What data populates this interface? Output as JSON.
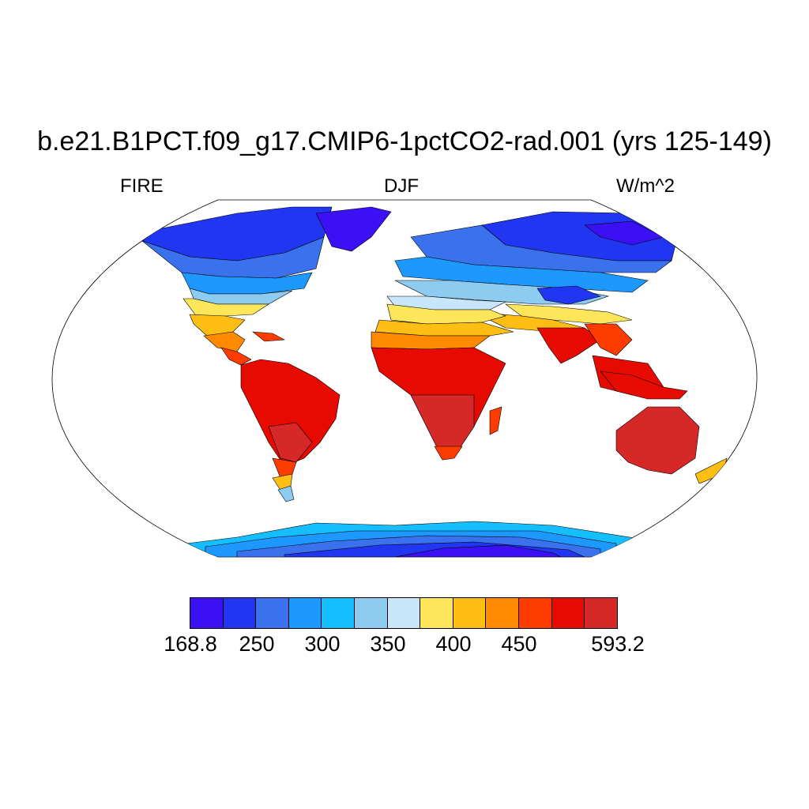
{
  "title": "b.e21.B1PCT.f09_g17.CMIP6-1pctCO2-rad.001 (yrs 125-149)",
  "left_label": "FIRE",
  "center_label": "DJF",
  "right_label": "W/m^2",
  "map": {
    "projection": "robinson",
    "variable": "FIRE",
    "season": "DJF",
    "units": "W/m^2"
  },
  "colorbar": {
    "colors": [
      "#3c10f5",
      "#2036f0",
      "#3a72ee",
      "#1c98ff",
      "#14beff",
      "#8ecbf0",
      "#c8e6fa",
      "#fde65a",
      "#ffbe14",
      "#ff8a00",
      "#ff3c00",
      "#e60a00",
      "#d72828"
    ],
    "label_min": "168.8",
    "label_max": "593.2",
    "tick_labels": [
      "250",
      "300",
      "350",
      "400",
      "450"
    ]
  }
}
